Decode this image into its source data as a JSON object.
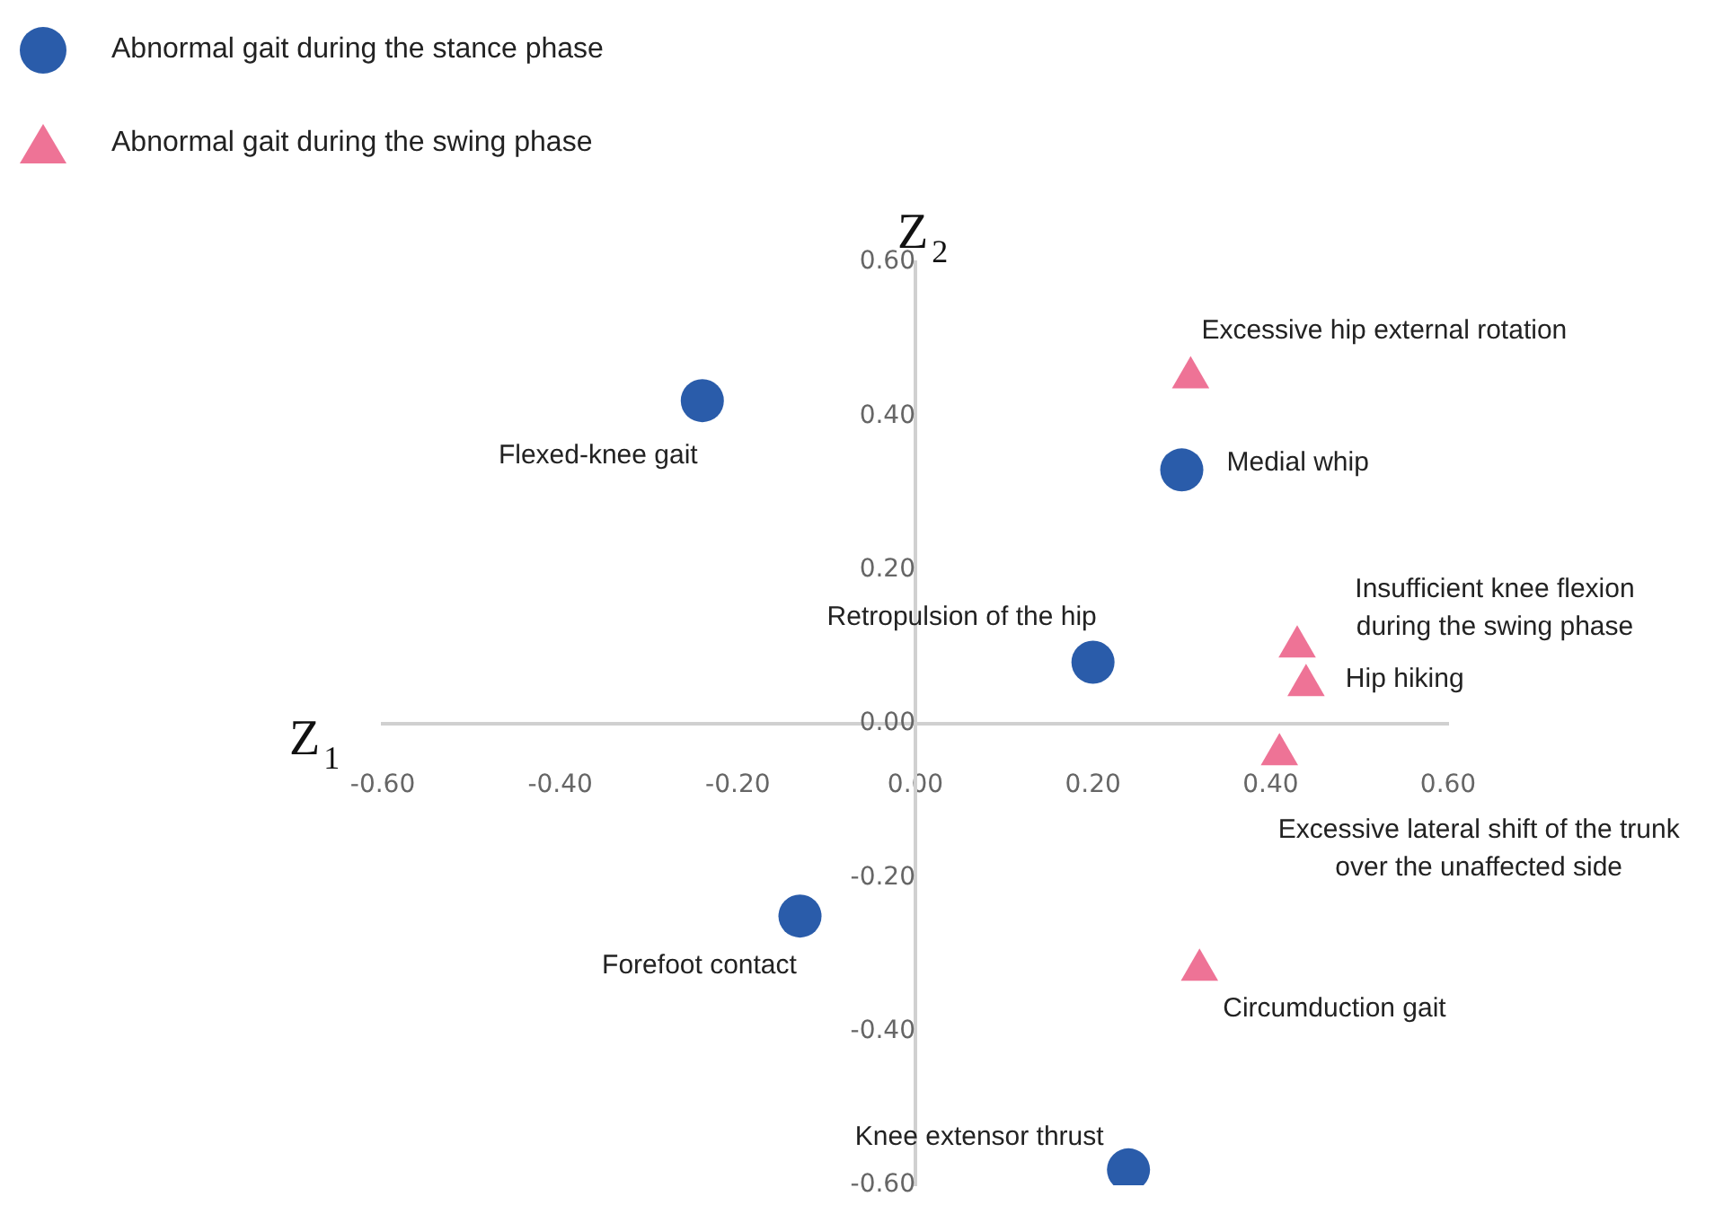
{
  "chart_data": {
    "type": "scatter",
    "xlabel": "Z$_{1}$",
    "ylabel": "Z$_{2}$",
    "series": [
      {
        "name": "Abnormal gait during the stance phase",
        "color": "#2a5caa",
        "marker": "circle",
        "x": [
          -0.24,
          0.3,
          0.2,
          -0.13,
          0.24
        ],
        "values": [
          0.42,
          0.33,
          0.08,
          -0.25,
          -0.58
        ]
      },
      {
        "name": "Abnormal gait during the swing phase",
        "color": "#ee7396",
        "marker": "triangle",
        "x": [
          0.31,
          0.43,
          0.44,
          0.41,
          0.32
        ],
        "values": [
          0.45,
          0.1,
          0.05,
          -0.04,
          -0.32
        ]
      }
    ],
    "annotations": [
      {
        "text": "Flexed-knee gait",
        "x": -0.24,
        "y": 0.42
      },
      {
        "text": "Medial whip",
        "x": 0.3,
        "y": 0.33
      },
      {
        "text": "Retropulsion of the hip",
        "x": 0.2,
        "y": 0.08
      },
      {
        "text": "Forefoot contact",
        "x": -0.13,
        "y": -0.25
      },
      {
        "text": "Knee extensor thrust",
        "x": 0.24,
        "y": -0.58
      },
      {
        "text": "Excessive hip external rotation",
        "x": 0.31,
        "y": 0.45
      },
      {
        "text": "Insufficient knee flexion\nduring the swing phase",
        "x": 0.43,
        "y": 0.1
      },
      {
        "text": "Hip hiking",
        "x": 0.44,
        "y": 0.05
      },
      {
        "text": "Excessive lateral shift of the trunk\nover the unaffected side",
        "x": 0.41,
        "y": -0.04
      },
      {
        "text": "Circumduction gait",
        "x": 0.32,
        "y": -0.32
      }
    ],
    "xlim": [
      -0.6,
      0.6
    ],
    "xticks": [
      {
        "value": -0.6,
        "label": "-0.60"
      },
      {
        "value": -0.4,
        "label": "-0.40"
      },
      {
        "value": -0.2,
        "label": "-0.20"
      },
      {
        "value": 0,
        "label": "0.00"
      },
      {
        "value": 0.2,
        "label": "0.20"
      },
      {
        "value": 0.4,
        "label": "0.40"
      },
      {
        "value": 0.6,
        "label": "0.60"
      }
    ],
    "ylim": [
      -0.6,
      0.6
    ],
    "yticks": [
      {
        "value": -0.6,
        "label": "-0.60"
      },
      {
        "value": -0.4,
        "label": "-0.40"
      },
      {
        "value": -0.2,
        "label": "-0.20"
      },
      {
        "value": 0,
        "label": "0.00"
      },
      {
        "value": 0.2,
        "label": "0.20"
      },
      {
        "value": 0.4,
        "label": "0.40"
      },
      {
        "value": 0.6,
        "label": "0.60"
      }
    ],
    "grid": false,
    "legend": "top left"
  }
}
